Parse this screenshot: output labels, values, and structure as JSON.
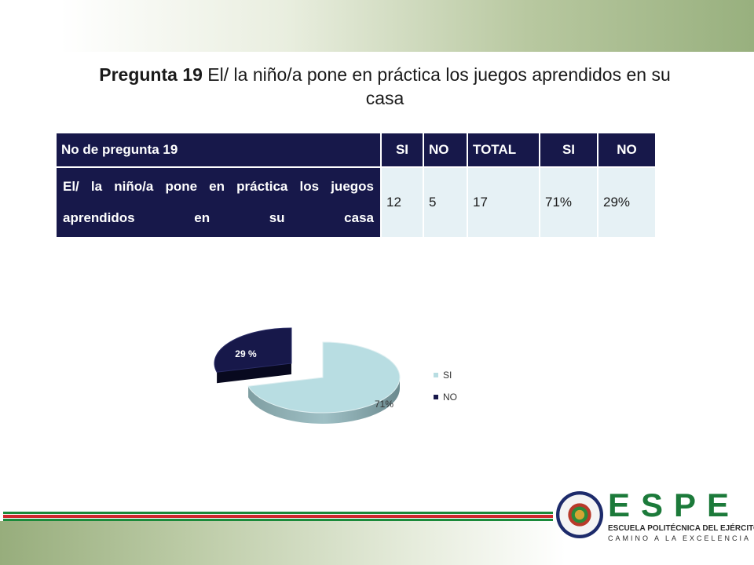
{
  "title": {
    "bold": "Pregunta 19",
    "text": " El/ la niño/a pone en práctica los juegos aprendidos en su casa"
  },
  "table": {
    "headers": [
      "No de pregunta 19",
      "SI",
      "NO",
      "TOTAL",
      "SI",
      "NO"
    ],
    "row": {
      "label": "El/ la niño/a pone en práctica los juegos aprendidos en su casa",
      "si": "12",
      "no": "5",
      "total": "17",
      "si_pct": "71%",
      "no_pct": "29%"
    }
  },
  "chart_data": {
    "type": "pie",
    "style": "3d-exploded",
    "labels": [
      "SI",
      "NO"
    ],
    "values": [
      71,
      29
    ],
    "data_labels": [
      "71%",
      "29 %"
    ],
    "colors": [
      "#b8dde2",
      "#17184a"
    ],
    "legend": "right"
  },
  "logo": {
    "letters": [
      "E",
      "S",
      "P",
      "E"
    ],
    "name": "ESCUELA POLITÉCNICA DEL EJÉRCITO",
    "motto": "CAMINO A LA EXCELENCIA"
  },
  "colors": {
    "stripe_green": "#1a8a3a",
    "stripe_red": "#d0282e",
    "table_header": "#17184a",
    "table_cell": "#e6f1f5"
  }
}
